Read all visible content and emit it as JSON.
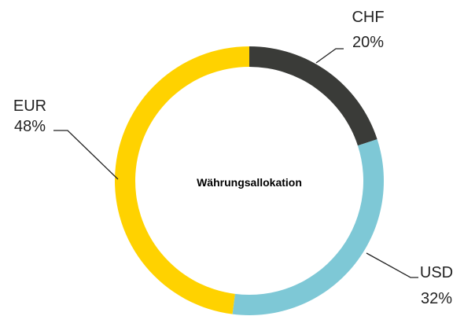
{
  "chart_data": {
    "type": "donut",
    "title": "Währungsallokation",
    "categories": [
      "CHF",
      "USD",
      "EUR"
    ],
    "values": [
      20,
      32,
      48
    ],
    "value_labels": [
      "20%",
      "32%",
      "48%"
    ],
    "colors": [
      "#3a3b38",
      "#7ec8d6",
      "#ffd200"
    ]
  }
}
